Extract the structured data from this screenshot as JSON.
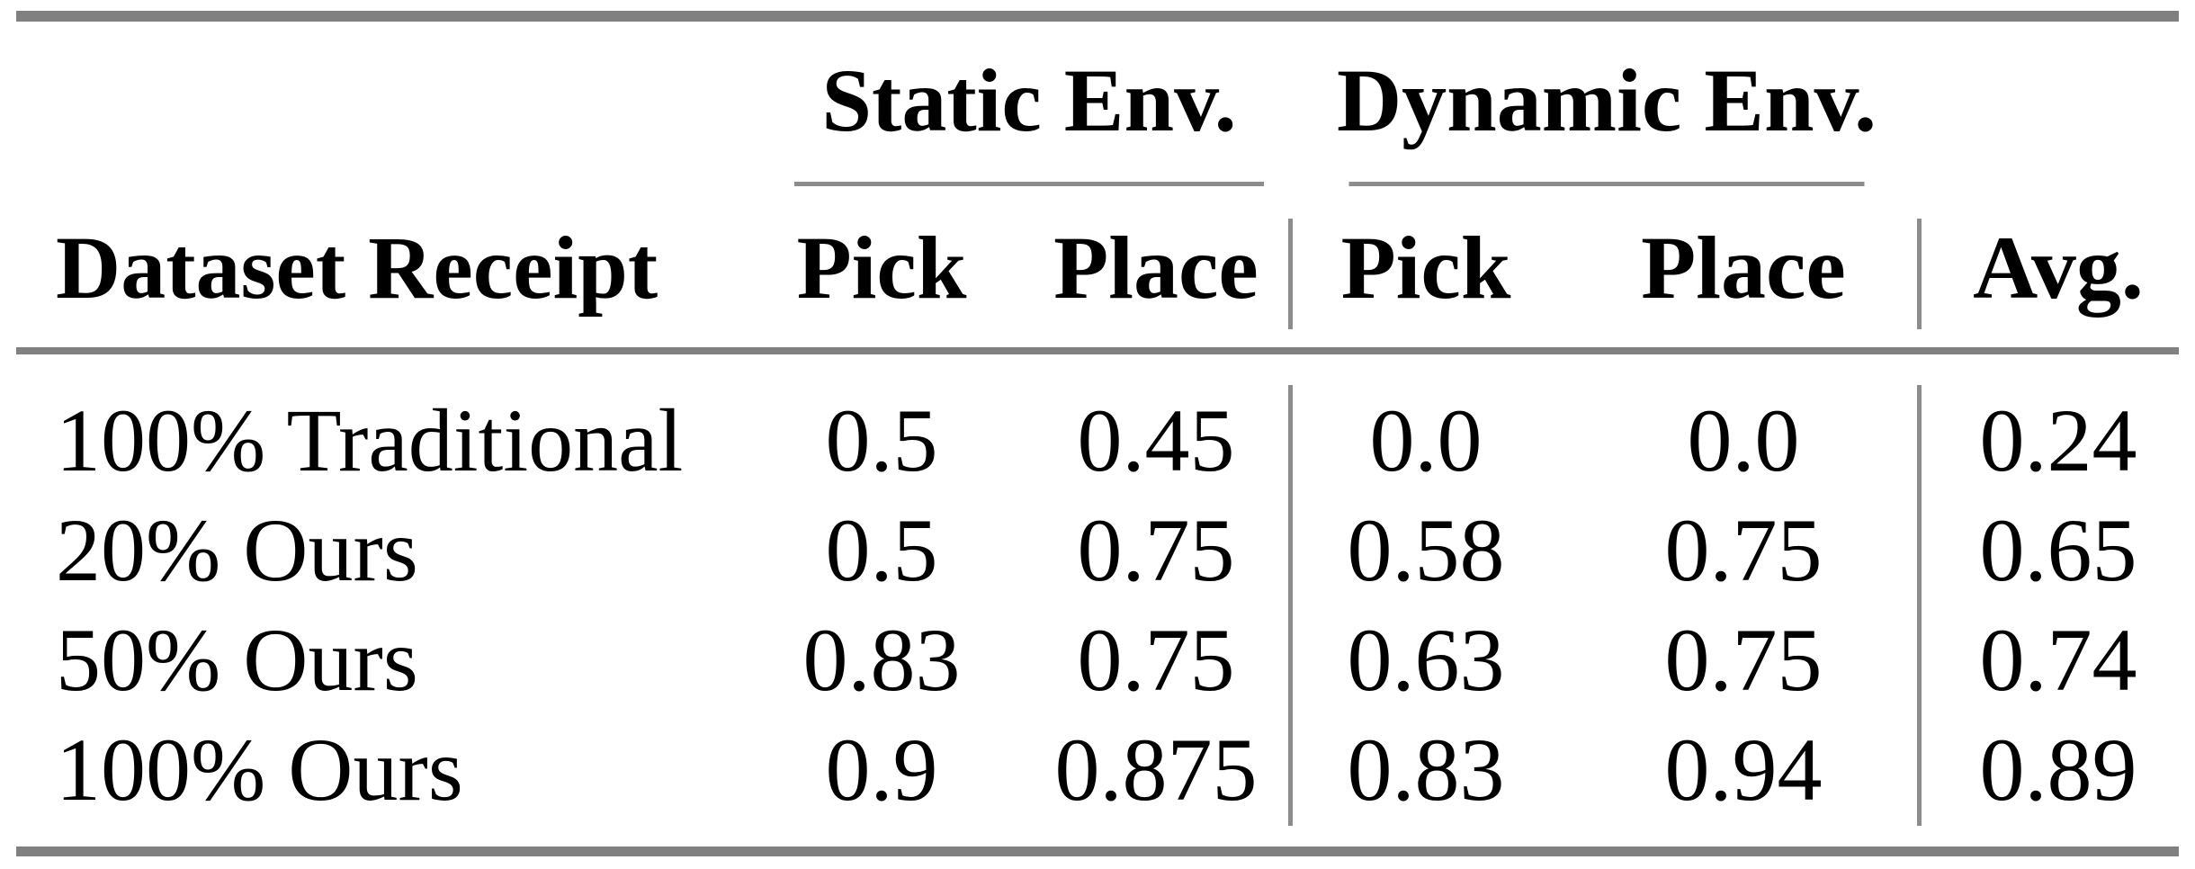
{
  "table": {
    "group_headers": {
      "static": "Static Env.",
      "dynamic": "Dynamic Env."
    },
    "column_headers": {
      "dataset": "Dataset Receipt",
      "static_pick": "Pick",
      "static_place": "Place",
      "dynamic_pick": "Pick",
      "dynamic_place": "Place",
      "avg": "Avg."
    },
    "rows": [
      {
        "dataset": "100% Traditional",
        "static_pick": "0.5",
        "static_place": "0.45",
        "dynamic_pick": "0.0",
        "dynamic_place": "0.0",
        "avg": "0.24"
      },
      {
        "dataset": "20% Ours",
        "static_pick": "0.5",
        "static_place": "0.75",
        "dynamic_pick": "0.58",
        "dynamic_place": "0.75",
        "avg": "0.65"
      },
      {
        "dataset": "50% Ours",
        "static_pick": "0.83",
        "static_place": "0.75",
        "dynamic_pick": "0.63",
        "dynamic_place": "0.75",
        "avg": "0.74"
      },
      {
        "dataset": "100% Ours",
        "static_pick": "0.9",
        "static_place": "0.875",
        "dynamic_pick": "0.83",
        "dynamic_place": "0.94",
        "avg": "0.89"
      }
    ]
  },
  "colors": {
    "background": "#ffffff",
    "text": "#000000",
    "rule_thick": "#808080",
    "rule_thin": "#8c8c8c"
  },
  "chart_data": {
    "type": "table",
    "title": "",
    "column_groups": [
      {
        "label": "Static Env.",
        "spans": [
          "Pick",
          "Place"
        ]
      },
      {
        "label": "Dynamic Env.",
        "spans": [
          "Pick",
          "Place"
        ]
      }
    ],
    "columns": [
      "Dataset Receipt",
      "Static Env. Pick",
      "Static Env. Place",
      "Dynamic Env. Pick",
      "Dynamic Env. Place",
      "Avg."
    ],
    "rows": [
      {
        "label": "100% Traditional",
        "values": [
          0.5,
          0.45,
          0.0,
          0.0,
          0.24
        ]
      },
      {
        "label": "20% Ours",
        "values": [
          0.5,
          0.75,
          0.58,
          0.75,
          0.65
        ]
      },
      {
        "label": "50% Ours",
        "values": [
          0.83,
          0.75,
          0.63,
          0.75,
          0.74
        ]
      },
      {
        "label": "100% Ours",
        "values": [
          0.9,
          0.875,
          0.83,
          0.94,
          0.89
        ]
      }
    ]
  }
}
